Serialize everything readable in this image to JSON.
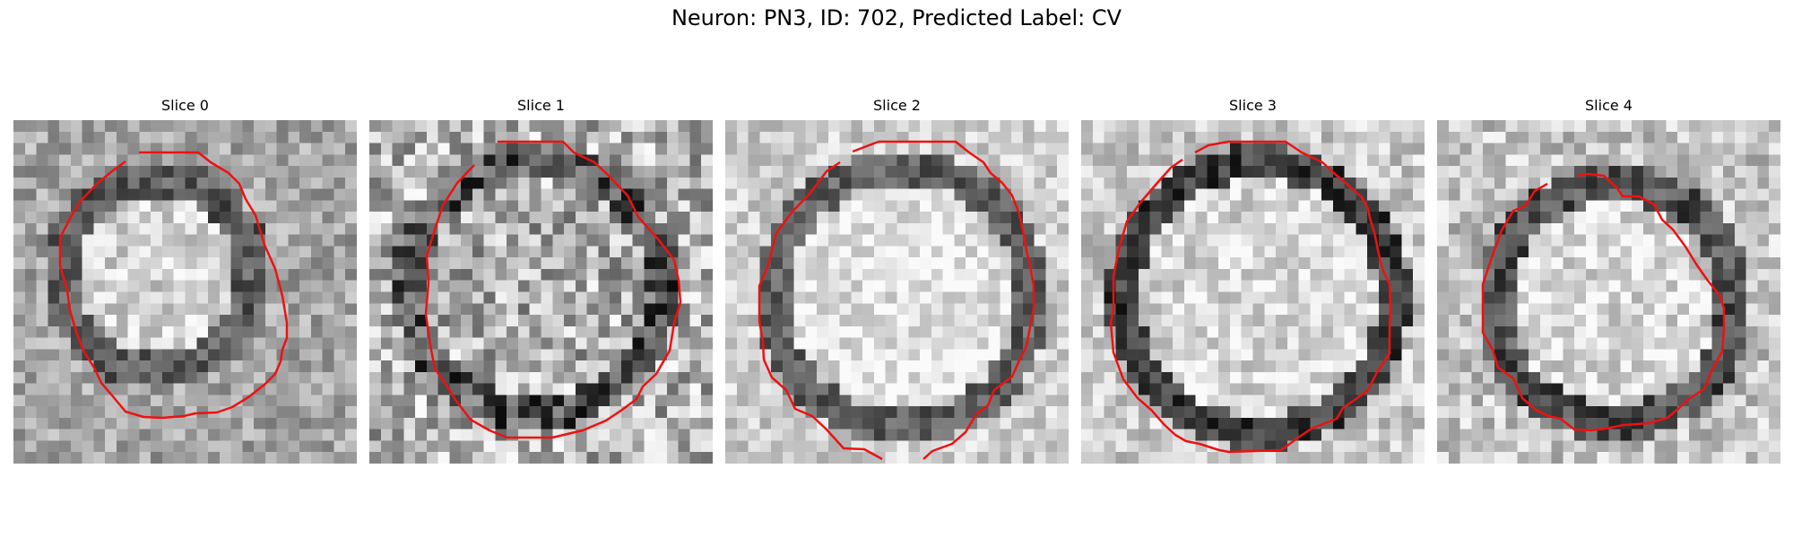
{
  "figure_title": "Neuron: PN3, ID: 702, Predicted Label: CV",
  "panels": [
    {
      "title": "Slice 0"
    },
    {
      "title": "Slice 1"
    },
    {
      "title": "Slice 2"
    },
    {
      "title": "Slice 3"
    },
    {
      "title": "Slice 4"
    }
  ],
  "contour_color": "#ee1111"
}
